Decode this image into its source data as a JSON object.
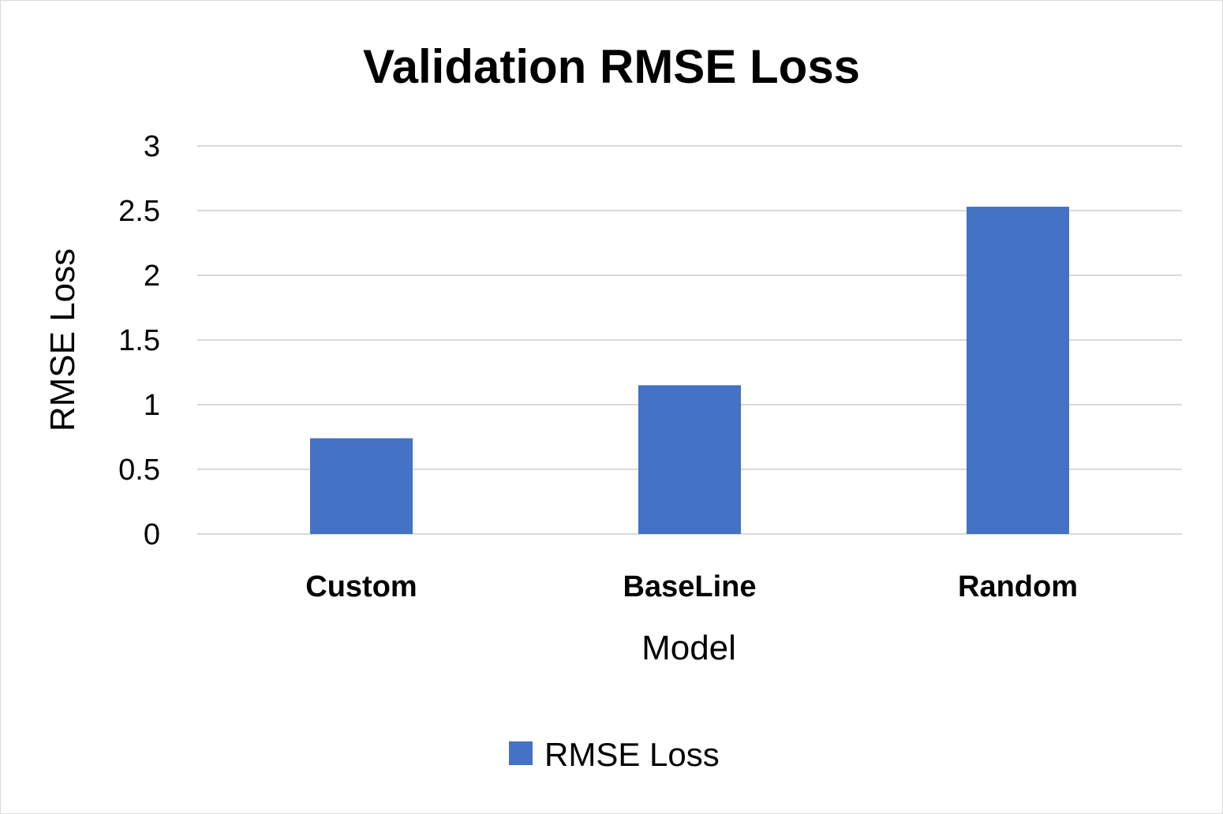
{
  "chart_data": {
    "type": "bar",
    "title": "Validation RMSE Loss",
    "xlabel": "Model",
    "ylabel": "RMSE Loss",
    "categories": [
      "Custom",
      "BaseLine",
      "Random"
    ],
    "series": [
      {
        "name": "RMSE Loss",
        "values": [
          0.74,
          1.15,
          2.53
        ],
        "color": "#4472c4"
      }
    ],
    "ylim": [
      0,
      3
    ],
    "yticks": [
      "0",
      "0.5",
      "1",
      "1.5",
      "2",
      "2.5",
      "3"
    ],
    "grid": true,
    "legend_position": "bottom"
  }
}
